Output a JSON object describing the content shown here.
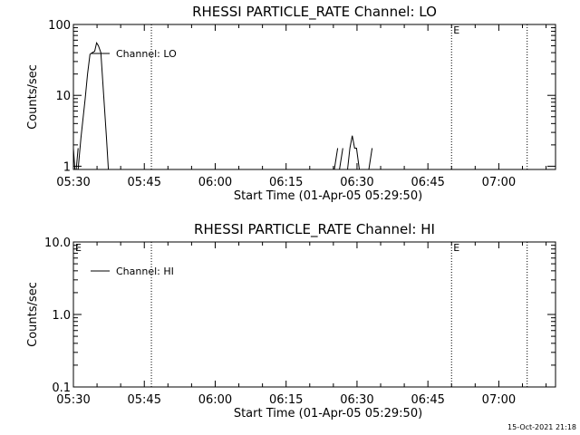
{
  "footer": {
    "timestamp": "15-Oct-2021 21:18"
  },
  "chart_data": [
    {
      "type": "line",
      "title": "RHESSI PARTICLE_RATE Channel: LO",
      "xlabel": "Start Time (01-Apr-05 05:29:50)",
      "ylabel": "Counts/sec",
      "y_scale": "log",
      "ylim": [
        0.9,
        100
      ],
      "xlim_minutes_after_0530": [
        0,
        102
      ],
      "x_ticks": [
        "05:30",
        "05:45",
        "06:00",
        "06:15",
        "06:30",
        "06:45",
        "07:00"
      ],
      "y_ticks": [
        {
          "value": 1,
          "label": "1"
        },
        {
          "value": 10,
          "label": "10"
        },
        {
          "value": 100,
          "label": "100"
        }
      ],
      "markers": [
        {
          "x": 16.5,
          "label": ""
        },
        {
          "x": 80,
          "label": "E"
        },
        {
          "x": 96,
          "label": ""
        }
      ],
      "legend": {
        "entry": "Channel: LO",
        "position": "top-left"
      },
      "series": [
        {
          "name": "Channel: LO",
          "segments": [
            [
              [
                0,
                1.8
              ],
              [
                0.3,
                0.9
              ]
            ],
            [
              [
                0.6,
                0.9
              ],
              [
                1.0,
                1.8
              ]
            ],
            [
              [
                1.0,
                0.9
              ],
              [
                1.6,
                2.5
              ],
              [
                2.5,
                9
              ],
              [
                3.0,
                20
              ],
              [
                3.5,
                38
              ],
              [
                4.0,
                40
              ],
              [
                4.5,
                42
              ],
              [
                4.9,
                55
              ],
              [
                5.3,
                50
              ],
              [
                5.8,
                40
              ],
              [
                6.4,
                10
              ],
              [
                7.0,
                2.5
              ],
              [
                7.4,
                0.9
              ]
            ],
            [
              [
                55.2,
                0.9
              ],
              [
                55.9,
                1.8
              ]
            ],
            [
              [
                56.3,
                0.9
              ],
              [
                57.0,
                1.8
              ]
            ],
            [
              [
                58.0,
                0.9
              ],
              [
                58.5,
                1.8
              ],
              [
                59.0,
                2.7
              ],
              [
                59.5,
                1.8
              ],
              [
                59.9,
                1.8
              ],
              [
                60.5,
                0.9
              ]
            ],
            [
              [
                62.5,
                0.9
              ],
              [
                63.2,
                1.8
              ]
            ]
          ]
        }
      ]
    },
    {
      "type": "line",
      "title": "RHESSI PARTICLE_RATE Channel: HI",
      "xlabel": "Start Time (01-Apr-05 05:29:50)",
      "ylabel": "Counts/sec",
      "y_scale": "log",
      "ylim": [
        0.1,
        10
      ],
      "xlim_minutes_after_0530": [
        0,
        102
      ],
      "x_ticks": [
        "05:30",
        "05:45",
        "06:00",
        "06:15",
        "06:30",
        "06:45",
        "07:00"
      ],
      "y_ticks": [
        {
          "value": 0.1,
          "label": "0.1"
        },
        {
          "value": 1,
          "label": "1.0"
        },
        {
          "value": 10,
          "label": "10.0"
        }
      ],
      "markers": [
        {
          "x": 0,
          "label": "E"
        },
        {
          "x": 16.5,
          "label": ""
        },
        {
          "x": 80,
          "label": "E"
        },
        {
          "x": 96,
          "label": ""
        }
      ],
      "legend": {
        "entry": "Channel: HI",
        "position": "top-left"
      },
      "series": [
        {
          "name": "Channel: HI",
          "segments": []
        }
      ]
    }
  ]
}
